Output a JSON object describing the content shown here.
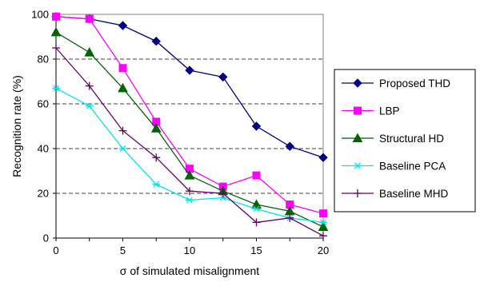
{
  "chart_data": {
    "type": "line",
    "title": "",
    "xlabel": "σ of simulated misalignment",
    "ylabel": "Recognition rate (%)",
    "xlim": [
      0,
      20
    ],
    "ylim": [
      0,
      100
    ],
    "x_ticks": [
      0,
      5,
      10,
      15,
      20
    ],
    "y_ticks": [
      0,
      20,
      40,
      60,
      80,
      100
    ],
    "grid": "horizontal-dashed",
    "legend_position": "right",
    "x": [
      0,
      2.5,
      5,
      7.5,
      10,
      12.5,
      15,
      17.5,
      20
    ],
    "series": [
      {
        "name": "Proposed THD",
        "color": "#000080",
        "marker": "diamond",
        "values": [
          99,
          98,
          95,
          88,
          75,
          72,
          50,
          41,
          36
        ]
      },
      {
        "name": "LBP",
        "color": "#ff00ff",
        "marker": "square",
        "values": [
          99,
          98,
          76,
          52,
          31,
          23,
          28,
          15,
          11
        ]
      },
      {
        "name": "Structural HD",
        "color": "#006400",
        "marker": "triangle",
        "values": [
          92,
          83,
          67,
          49,
          28,
          21,
          15,
          12,
          5
        ]
      },
      {
        "name": "Baseline PCA",
        "color": "#00e5ee",
        "marker": "star",
        "values": [
          67,
          59,
          40,
          24,
          17,
          18,
          13,
          9,
          7
        ]
      },
      {
        "name": "Baseline MHD",
        "color": "#660066",
        "marker": "plus",
        "values": [
          85,
          68,
          48,
          36,
          21,
          20,
          7,
          9,
          1
        ]
      }
    ]
  }
}
